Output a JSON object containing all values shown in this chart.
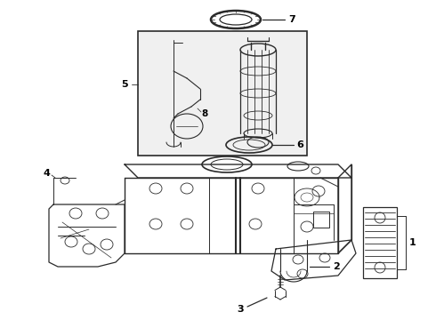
{
  "bg_color": "#ffffff",
  "line_color": "#2a2a2a",
  "lw_main": 0.9,
  "lw_thin": 0.55,
  "label_fontsize": 7.5,
  "fig_width": 4.9,
  "fig_height": 3.6,
  "dpi": 100
}
